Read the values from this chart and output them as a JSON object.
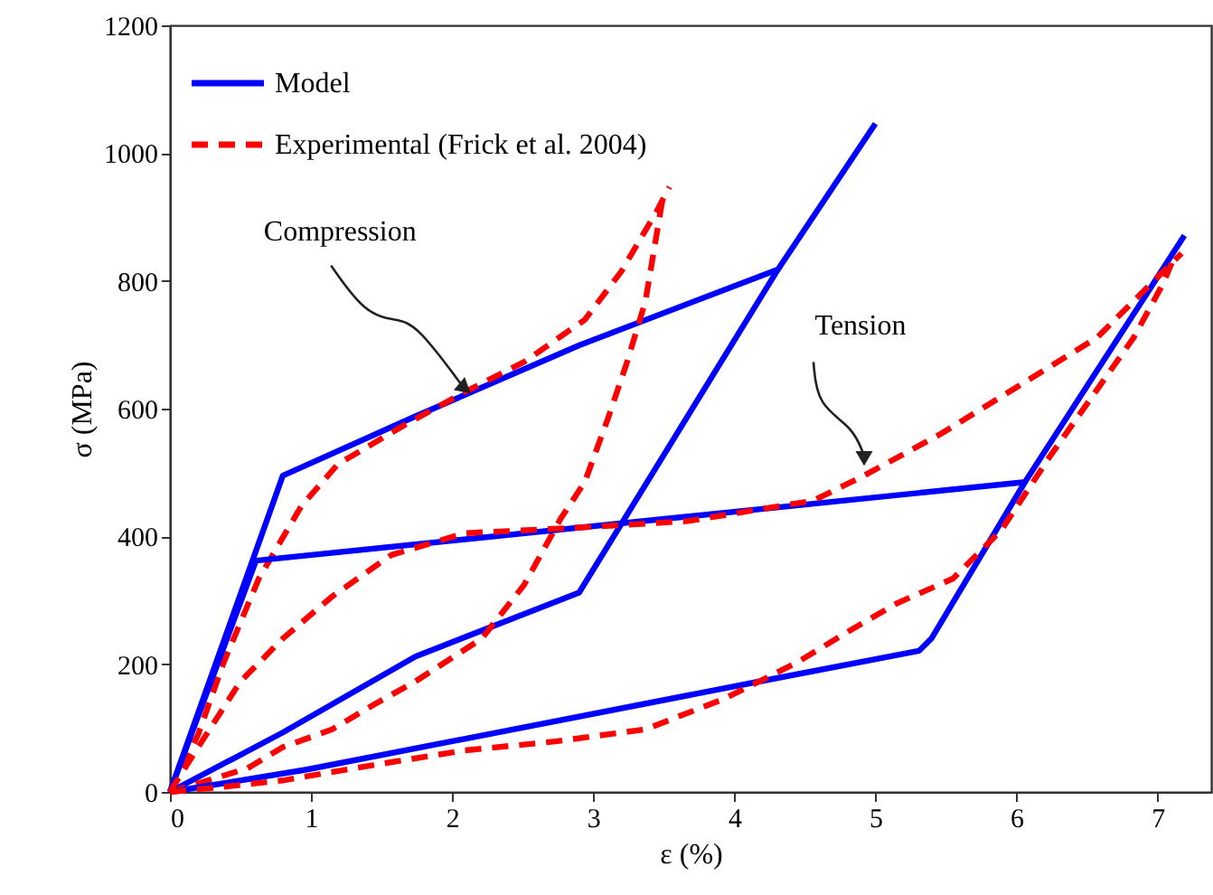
{
  "chart_data": {
    "type": "line",
    "xlabel": "ε (%)",
    "ylabel": "σ (MPa)",
    "xlim": [
      0,
      7.38
    ],
    "xticks": [
      0,
      1,
      2,
      3,
      4,
      5,
      6,
      7
    ],
    "ylim": [
      0,
      1200
    ],
    "yticks": [
      0,
      200,
      400,
      600,
      800,
      1000,
      1200
    ],
    "grid": false,
    "legend": "top left",
    "marker": "none",
    "annotations": [
      {
        "text": "Compression",
        "x": 2.09,
        "y": 620
      },
      {
        "text": "Tension",
        "x": 4.92,
        "y": 523
      }
    ],
    "series": [
      {
        "name": "Model",
        "color": "#0000ff",
        "line_style": "solid",
        "x": [
          0,
          0.8,
          1.74,
          2.9,
          4.31,
          5.0
        ],
        "values": [
          0,
          495,
          588,
          699,
          818,
          1046
        ]
      },
      {
        "name": "Experimental (Frick et al. 2004)",
        "color": "#ff0000",
        "line_style": "dashed",
        "x": [
          0,
          0.2,
          0.38,
          0.63,
          0.93,
          1.19,
          1.66,
          2.09,
          2.51,
          2.94,
          3.2,
          3.45,
          3.54
        ],
        "values": [
          0,
          90,
          202,
          334,
          447,
          513,
          574,
          626,
          673,
          739,
          815,
          909,
          947
        ]
      },
      {
        "color": "#0000ff",
        "line_style": "solid",
        "x": [
          0,
          0.8,
          1.74,
          2.9,
          4.31
        ],
        "values": [
          0,
          93,
          212,
          312,
          818
        ]
      },
      {
        "color": "#ff0000",
        "line_style": "dashed",
        "x": [
          0,
          0.55,
          0.8,
          1.15,
          1.44,
          1.74,
          2.21,
          2.51,
          2.77,
          2.94,
          3.11,
          3.24,
          3.37,
          3.49
        ],
        "values": [
          0,
          37,
          70,
          98,
          136,
          173,
          240,
          324,
          428,
          485,
          588,
          673,
          768,
          926
        ]
      },
      {
        "color": "#0000ff",
        "line_style": "solid",
        "x": [
          0,
          0.61,
          6.06,
          7.19
        ],
        "values": [
          0,
          362,
          485,
          871
        ]
      },
      {
        "color": "#0000ff",
        "line_style": "solid",
        "x": [
          0,
          0.97,
          4.18,
          5.31,
          5.4,
          6.06
        ],
        "values": [
          0,
          35,
          173,
          221,
          241,
          485
        ]
      },
      {
        "color": "#ff0000",
        "line_style": "dashed",
        "x": [
          0,
          0.2,
          0.5,
          0.8,
          1.15,
          1.57,
          2.09,
          3.0,
          3.67,
          4.56,
          4.91,
          5.46,
          6.02,
          6.57,
          7.17
        ],
        "values": [
          0,
          70,
          173,
          240,
          306,
          371,
          405,
          415,
          424,
          456,
          494,
          560,
          636,
          711,
          843
        ]
      },
      {
        "color": "#ff0000",
        "line_style": "dashed",
        "x": [
          0,
          0.38,
          0.8,
          1.44,
          2.09,
          2.73,
          3.37,
          3.92,
          4.44,
          4.86,
          5.16,
          5.55,
          5.89,
          6.23,
          6.83,
          7.04,
          7.1
        ],
        "values": [
          0,
          8,
          18,
          42,
          65,
          79,
          98,
          145,
          202,
          258,
          296,
          334,
          409,
          523,
          711,
          796,
          828
        ]
      }
    ]
  }
}
